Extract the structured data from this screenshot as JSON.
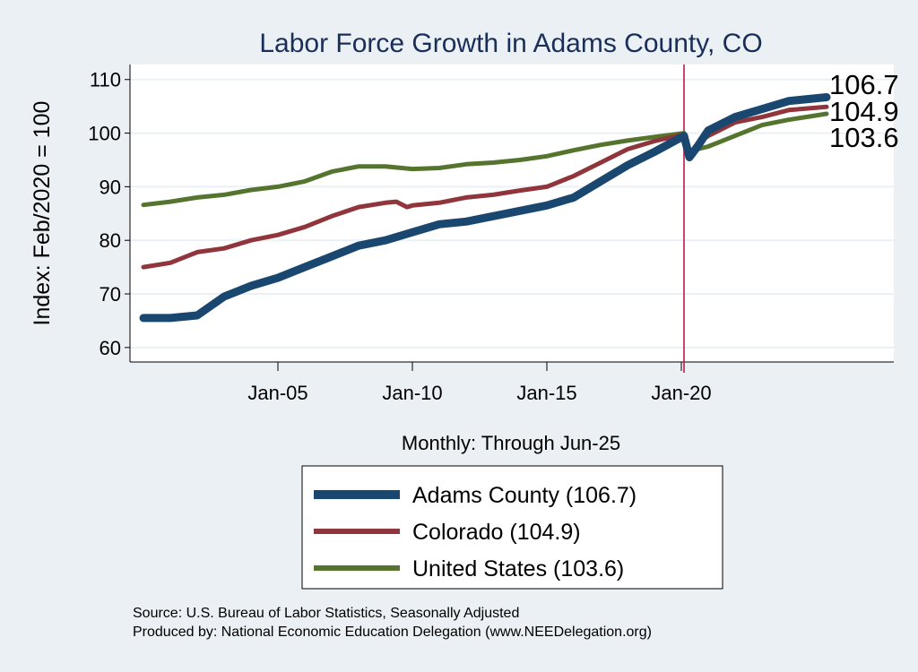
{
  "chart_data": {
    "type": "line",
    "title": "Labor Force Growth in Adams  County, CO",
    "ylabel": "Index: Feb/2020 = 100",
    "xlabel": "Monthly: Through Jun-25",
    "ylim": [
      57.3,
      112.8
    ],
    "xlim": [
      1999.5,
      2027.9
    ],
    "yticks": [
      60,
      70,
      80,
      90,
      100,
      110
    ],
    "xticks": [
      {
        "value": 2005,
        "label": "Jan-05"
      },
      {
        "value": 2010,
        "label": "Jan-10"
      },
      {
        "value": 2015,
        "label": "Jan-15"
      },
      {
        "value": 2020,
        "label": "Jan-20"
      }
    ],
    "reference_line_x": 2020.1,
    "grid": true,
    "legend_position": "bottom",
    "series": [
      {
        "name": "Adams  County (106.7)",
        "end_label": "106.7",
        "color": "#1a476f",
        "width": 9,
        "x": [
          2000,
          2001,
          2002,
          2003,
          2004,
          2005,
          2006,
          2007,
          2008,
          2009,
          2010,
          2011,
          2012,
          2013,
          2014,
          2015,
          2016,
          2017,
          2018,
          2019,
          2020.1,
          2020.3,
          2020.6,
          2021,
          2022,
          2023,
          2024,
          2025.4
        ],
        "values": [
          65.5,
          65.5,
          66,
          69.5,
          71.5,
          73,
          75,
          77,
          79,
          80,
          81.5,
          83,
          83.5,
          84.5,
          85.5,
          86.5,
          88,
          91,
          94,
          96.5,
          99.5,
          95.5,
          97.5,
          100.5,
          103,
          104.5,
          106,
          106.7
        ]
      },
      {
        "name": "Colorado (104.9)",
        "end_label": "104.9",
        "color": "#90353b",
        "width": 5,
        "x": [
          2000,
          2001,
          2002,
          2003,
          2004,
          2005,
          2006,
          2007,
          2008,
          2009,
          2009.4,
          2009.8,
          2010,
          2011,
          2012,
          2013,
          2014,
          2015,
          2016,
          2017,
          2018,
          2019,
          2020.1,
          2020.3,
          2020.6,
          2021,
          2022,
          2023,
          2024,
          2025.4
        ],
        "values": [
          75,
          75.8,
          77.8,
          78.5,
          80,
          81,
          82.5,
          84.5,
          86.2,
          87,
          87.2,
          86.2,
          86.5,
          87,
          88,
          88.5,
          89.3,
          90,
          92,
          94.5,
          97,
          98.5,
          99.8,
          96,
          98,
          99.5,
          102,
          103,
          104.3,
          104.9
        ]
      },
      {
        "name": "United States (103.6)",
        "end_label": "103.6",
        "color": "#55752f",
        "width": 5,
        "x": [
          2000,
          2001,
          2002,
          2003,
          2004,
          2005,
          2006,
          2007,
          2008,
          2009,
          2010,
          2011,
          2012,
          2013,
          2014,
          2015,
          2016,
          2017,
          2018,
          2019,
          2020.1,
          2020.3,
          2020.6,
          2021,
          2022,
          2023,
          2024,
          2025.4
        ],
        "values": [
          86.6,
          87.2,
          88,
          88.5,
          89.4,
          90,
          91,
          92.8,
          93.8,
          93.8,
          93.3,
          93.5,
          94.2,
          94.5,
          95,
          95.7,
          96.8,
          97.8,
          98.6,
          99.3,
          100,
          95.5,
          97,
          97.5,
          99.5,
          101.5,
          102.5,
          103.6
        ]
      }
    ]
  },
  "footer": {
    "source": "Source: U.S. Bureau of Labor Statistics, Seasonally Adjusted",
    "produced": "Produced by: National Economic Education Delegation (www.NEEDelegation.org)"
  }
}
